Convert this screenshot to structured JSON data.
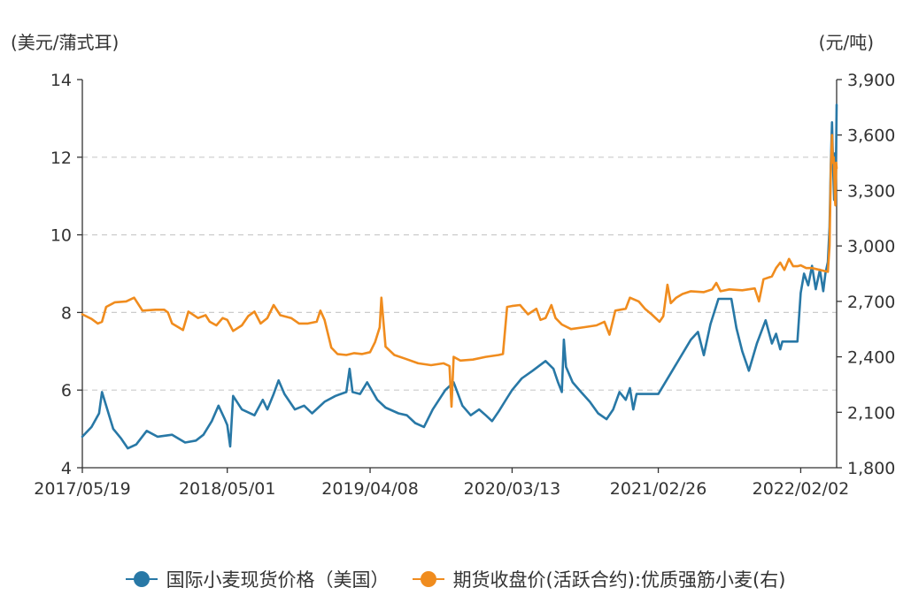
{
  "units": {
    "left": "(美元/蒲式耳)",
    "right": "(元/吨)"
  },
  "chart_data": {
    "type": "line",
    "x_ticks": [
      "2017/05/19",
      "2018/05/01",
      "2019/04/08",
      "2020/03/13",
      "2021/02/26",
      "2022/02/02"
    ],
    "x_range": [
      "2017-05-19",
      "2022-04-29"
    ],
    "y_left": {
      "ticks": [
        "4",
        "6",
        "8",
        "10",
        "12",
        "14"
      ],
      "range": [
        4,
        14
      ]
    },
    "y_right": {
      "ticks": [
        "1,800",
        "2,100",
        "2,400",
        "2,700",
        "3,000",
        "3,300",
        "3,600",
        "3,900"
      ],
      "range": [
        1800,
        3900
      ]
    },
    "grid": true,
    "legend_position": "bottom",
    "series": [
      {
        "name": "国际小麦现货价格（美国）",
        "axis": "left",
        "color": "#2878a6",
        "points": [
          [
            "2017-05-19",
            4.8
          ],
          [
            "2017-06-10",
            5.05
          ],
          [
            "2017-06-28",
            5.4
          ],
          [
            "2017-07-05",
            5.95
          ],
          [
            "2017-07-15",
            5.6
          ],
          [
            "2017-08-01",
            5.0
          ],
          [
            "2017-08-20",
            4.75
          ],
          [
            "2017-09-05",
            4.5
          ],
          [
            "2017-09-25",
            4.6
          ],
          [
            "2017-10-20",
            4.95
          ],
          [
            "2017-11-15",
            4.8
          ],
          [
            "2017-12-20",
            4.85
          ],
          [
            "2018-01-20",
            4.65
          ],
          [
            "2018-02-15",
            4.7
          ],
          [
            "2018-03-05",
            4.85
          ],
          [
            "2018-03-25",
            5.2
          ],
          [
            "2018-04-10",
            5.6
          ],
          [
            "2018-04-25",
            5.25
          ],
          [
            "2018-05-01",
            5.1
          ],
          [
            "2018-05-08",
            4.55
          ],
          [
            "2018-05-15",
            5.85
          ],
          [
            "2018-06-05",
            5.5
          ],
          [
            "2018-07-05",
            5.35
          ],
          [
            "2018-07-25",
            5.75
          ],
          [
            "2018-08-05",
            5.5
          ],
          [
            "2018-08-20",
            5.9
          ],
          [
            "2018-09-01",
            6.25
          ],
          [
            "2018-09-15",
            5.9
          ],
          [
            "2018-10-10",
            5.5
          ],
          [
            "2018-11-01",
            5.6
          ],
          [
            "2018-11-20",
            5.4
          ],
          [
            "2018-12-20",
            5.7
          ],
          [
            "2019-01-15",
            5.85
          ],
          [
            "2019-02-10",
            5.95
          ],
          [
            "2019-02-18",
            6.55
          ],
          [
            "2019-02-25",
            5.95
          ],
          [
            "2019-03-15",
            5.9
          ],
          [
            "2019-04-01",
            6.2
          ],
          [
            "2019-04-25",
            5.75
          ],
          [
            "2019-05-15",
            5.55
          ],
          [
            "2019-06-15",
            5.4
          ],
          [
            "2019-07-05",
            5.35
          ],
          [
            "2019-07-25",
            5.15
          ],
          [
            "2019-08-15",
            5.05
          ],
          [
            "2019-09-05",
            5.5
          ],
          [
            "2019-10-05",
            6.0
          ],
          [
            "2019-10-25",
            6.2
          ],
          [
            "2019-11-15",
            5.6
          ],
          [
            "2019-12-05",
            5.35
          ],
          [
            "2019-12-25",
            5.5
          ],
          [
            "2020-01-10",
            5.35
          ],
          [
            "2020-01-25",
            5.2
          ],
          [
            "2020-02-10",
            5.45
          ],
          [
            "2020-03-01",
            5.8
          ],
          [
            "2020-03-13",
            6.0
          ],
          [
            "2020-04-05",
            6.3
          ],
          [
            "2020-05-01",
            6.5
          ],
          [
            "2020-06-01",
            6.75
          ],
          [
            "2020-06-20",
            6.55
          ],
          [
            "2020-07-01",
            6.2
          ],
          [
            "2020-07-10",
            5.95
          ],
          [
            "2020-07-15",
            7.3
          ],
          [
            "2020-07-20",
            6.6
          ],
          [
            "2020-08-05",
            6.2
          ],
          [
            "2020-08-25",
            5.95
          ],
          [
            "2020-09-15",
            5.7
          ],
          [
            "2020-10-05",
            5.4
          ],
          [
            "2020-10-25",
            5.25
          ],
          [
            "2020-11-10",
            5.5
          ],
          [
            "2020-11-25",
            5.95
          ],
          [
            "2020-12-10",
            5.75
          ],
          [
            "2020-12-20",
            6.05
          ],
          [
            "2020-12-28",
            5.5
          ],
          [
            "2021-01-05",
            5.9
          ],
          [
            "2021-02-01",
            5.9
          ],
          [
            "2021-02-26",
            5.9
          ],
          [
            "2021-05-15",
            7.3
          ],
          [
            "2021-06-01",
            7.5
          ],
          [
            "2021-06-15",
            6.9
          ],
          [
            "2021-07-01",
            7.7
          ],
          [
            "2021-07-20",
            8.35
          ],
          [
            "2021-08-20",
            8.35
          ],
          [
            "2021-09-01",
            7.6
          ],
          [
            "2021-09-15",
            7.0
          ],
          [
            "2021-10-01",
            6.5
          ],
          [
            "2021-10-20",
            7.2
          ],
          [
            "2021-11-10",
            7.8
          ],
          [
            "2021-11-25",
            7.2
          ],
          [
            "2021-12-05",
            7.45
          ],
          [
            "2021-12-15",
            7.05
          ],
          [
            "2021-12-20",
            7.25
          ],
          [
            "2022-01-25",
            7.25
          ],
          [
            "2022-02-02",
            8.5
          ],
          [
            "2022-02-10",
            9.0
          ],
          [
            "2022-02-20",
            8.7
          ],
          [
            "2022-03-01",
            9.2
          ],
          [
            "2022-03-10",
            8.6
          ],
          [
            "2022-03-20",
            9.1
          ],
          [
            "2022-03-28",
            8.55
          ],
          [
            "2022-04-02",
            9.0
          ],
          [
            "2022-04-08",
            9.3
          ],
          [
            "2022-04-12",
            10.2
          ],
          [
            "2022-04-15",
            11.8
          ],
          [
            "2022-04-18",
            12.9
          ],
          [
            "2022-04-21",
            11.6
          ],
          [
            "2022-04-23",
            10.9
          ],
          [
            "2022-04-25",
            12.1
          ],
          [
            "2022-04-26",
            11.2
          ],
          [
            "2022-04-27",
            11.8
          ],
          [
            "2022-04-28",
            12.3
          ],
          [
            "2022-04-29",
            13.35
          ]
        ]
      },
      {
        "name": "期货收盘价(活跃合约):优质强筋小麦(右)",
        "axis": "right",
        "color": "#f08c1e",
        "points": [
          [
            "2017-05-19",
            2630
          ],
          [
            "2017-06-10",
            2605
          ],
          [
            "2017-06-25",
            2580
          ],
          [
            "2017-07-05",
            2590
          ],
          [
            "2017-07-15",
            2670
          ],
          [
            "2017-08-05",
            2695
          ],
          [
            "2017-09-01",
            2700
          ],
          [
            "2017-09-20",
            2720
          ],
          [
            "2017-10-10",
            2650
          ],
          [
            "2017-11-10",
            2655
          ],
          [
            "2017-12-01",
            2655
          ],
          [
            "2017-12-10",
            2640
          ],
          [
            "2017-12-20",
            2580
          ],
          [
            "2018-01-15",
            2545
          ],
          [
            "2018-01-28",
            2645
          ],
          [
            "2018-02-20",
            2610
          ],
          [
            "2018-03-10",
            2625
          ],
          [
            "2018-03-20",
            2590
          ],
          [
            "2018-04-05",
            2570
          ],
          [
            "2018-04-20",
            2610
          ],
          [
            "2018-05-01",
            2600
          ],
          [
            "2018-05-15",
            2540
          ],
          [
            "2018-06-05",
            2570
          ],
          [
            "2018-06-20",
            2620
          ],
          [
            "2018-07-05",
            2645
          ],
          [
            "2018-07-20",
            2580
          ],
          [
            "2018-08-05",
            2610
          ],
          [
            "2018-08-20",
            2680
          ],
          [
            "2018-09-05",
            2625
          ],
          [
            "2018-10-01",
            2610
          ],
          [
            "2018-10-20",
            2580
          ],
          [
            "2018-11-10",
            2580
          ],
          [
            "2018-12-01",
            2590
          ],
          [
            "2018-12-10",
            2650
          ],
          [
            "2018-12-20",
            2600
          ],
          [
            "2019-01-05",
            2450
          ],
          [
            "2019-01-20",
            2415
          ],
          [
            "2019-02-10",
            2410
          ],
          [
            "2019-03-01",
            2420
          ],
          [
            "2019-03-20",
            2415
          ],
          [
            "2019-04-08",
            2425
          ],
          [
            "2019-04-20",
            2480
          ],
          [
            "2019-05-01",
            2560
          ],
          [
            "2019-05-05",
            2720
          ],
          [
            "2019-05-10",
            2590
          ],
          [
            "2019-05-15",
            2455
          ],
          [
            "2019-06-05",
            2410
          ],
          [
            "2019-07-01",
            2390
          ],
          [
            "2019-08-01",
            2365
          ],
          [
            "2019-09-01",
            2355
          ],
          [
            "2019-10-01",
            2365
          ],
          [
            "2019-10-15",
            2350
          ],
          [
            "2019-10-20",
            2130
          ],
          [
            "2019-10-25",
            2400
          ],
          [
            "2019-11-10",
            2380
          ],
          [
            "2019-12-10",
            2385
          ],
          [
            "2020-01-10",
            2400
          ],
          [
            "2020-02-10",
            2410
          ],
          [
            "2020-02-20",
            2415
          ],
          [
            "2020-03-01",
            2670
          ],
          [
            "2020-03-13",
            2675
          ],
          [
            "2020-04-01",
            2680
          ],
          [
            "2020-04-20",
            2630
          ],
          [
            "2020-05-10",
            2660
          ],
          [
            "2020-05-20",
            2600
          ],
          [
            "2020-06-01",
            2610
          ],
          [
            "2020-06-15",
            2680
          ],
          [
            "2020-06-25",
            2610
          ],
          [
            "2020-07-10",
            2575
          ],
          [
            "2020-08-01",
            2550
          ],
          [
            "2020-09-01",
            2560
          ],
          [
            "2020-10-01",
            2570
          ],
          [
            "2020-10-20",
            2590
          ],
          [
            "2020-11-01",
            2520
          ],
          [
            "2020-11-15",
            2650
          ],
          [
            "2020-12-10",
            2660
          ],
          [
            "2020-12-20",
            2720
          ],
          [
            "2021-01-10",
            2700
          ],
          [
            "2021-01-25",
            2660
          ],
          [
            "2021-02-10",
            2630
          ],
          [
            "2021-03-01",
            2590
          ],
          [
            "2021-03-10",
            2620
          ],
          [
            "2021-03-20",
            2790
          ],
          [
            "2021-03-28",
            2690
          ],
          [
            "2021-04-10",
            2720
          ],
          [
            "2021-04-25",
            2740
          ],
          [
            "2021-05-15",
            2755
          ],
          [
            "2021-06-15",
            2750
          ],
          [
            "2021-07-05",
            2765
          ],
          [
            "2021-07-15",
            2800
          ],
          [
            "2021-07-25",
            2755
          ],
          [
            "2021-08-15",
            2765
          ],
          [
            "2021-09-15",
            2760
          ],
          [
            "2021-10-15",
            2770
          ],
          [
            "2021-10-25",
            2700
          ],
          [
            "2021-11-05",
            2820
          ],
          [
            "2021-11-25",
            2835
          ],
          [
            "2021-12-05",
            2880
          ],
          [
            "2021-12-15",
            2910
          ],
          [
            "2021-12-25",
            2870
          ],
          [
            "2022-01-05",
            2930
          ],
          [
            "2022-01-15",
            2890
          ],
          [
            "2022-01-25",
            2890
          ],
          [
            "2022-02-02",
            2895
          ],
          [
            "2022-02-15",
            2880
          ],
          [
            "2022-03-01",
            2880
          ],
          [
            "2022-03-20",
            2870
          ],
          [
            "2022-04-08",
            2860
          ],
          [
            "2022-04-12",
            3000
          ],
          [
            "2022-04-15",
            3400
          ],
          [
            "2022-04-18",
            3600
          ],
          [
            "2022-04-20",
            3450
          ],
          [
            "2022-04-22",
            3480
          ],
          [
            "2022-04-24",
            3350
          ],
          [
            "2022-04-25",
            3250
          ],
          [
            "2022-04-26",
            3220
          ],
          [
            "2022-04-27",
            3350
          ],
          [
            "2022-04-28",
            3450
          ],
          [
            "2022-04-29",
            3420
          ]
        ]
      }
    ]
  }
}
